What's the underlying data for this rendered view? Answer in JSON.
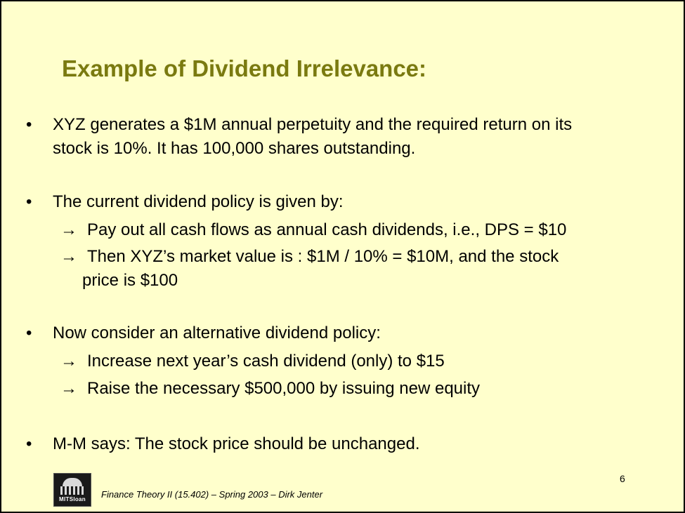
{
  "title": "Example of Dividend Irrelevance:",
  "bullet_symbol": "•",
  "arrow_symbol": "→",
  "bullets": [
    {
      "lines": [
        "XYZ generates a $1M annual perpetuity and the required return on its",
        "stock is 10%. It has 100,000 shares outstanding."
      ]
    },
    {
      "lines": [
        "The current dividend policy is given by:"
      ],
      "subs": [
        {
          "text": "Pay out all cash flows as annual cash dividends, i.e., DPS = $10"
        },
        {
          "text": "Then XYZ’s market value is : $1M / 10%  =  $10M, and the stock",
          "cont": "price is $100"
        }
      ]
    },
    {
      "lines": [
        "Now consider an alternative dividend policy:"
      ],
      "subs": [
        {
          "text": "Increase next year’s cash dividend (only) to $15"
        },
        {
          "text": "Raise the necessary $500,000 by issuing new equity"
        }
      ]
    },
    {
      "lines": [
        "M-M says: The stock price should be unchanged."
      ]
    }
  ],
  "page_number": "6",
  "logo": {
    "icon": "mit-sloan-logo-icon",
    "label": "MITSloan"
  },
  "footer": "Finance Theory II (15.402) – Spring 2003 – Dirk Jenter"
}
